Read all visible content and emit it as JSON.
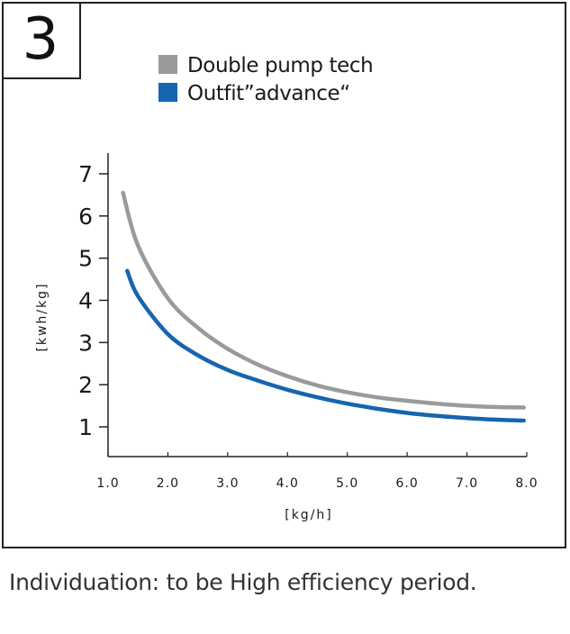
{
  "badge": "3",
  "caption": "Individuation:  to be High efficiency period.",
  "chart_data": {
    "type": "line",
    "title": "",
    "xlabel": "[kg/h]",
    "ylabel": "[kwh/kg]",
    "xlim": [
      1.0,
      8.0
    ],
    "ylim": [
      0.3,
      7.4
    ],
    "xticks": [
      "1.0",
      "2.0",
      "3.0",
      "4.0",
      "5.0",
      "6.0",
      "7.0",
      "8.0"
    ],
    "yticks": [
      "1",
      "2",
      "3",
      "4",
      "5",
      "6",
      "7"
    ],
    "grid": false,
    "legend_position": "top",
    "series": [
      {
        "name": "Double pump tech",
        "color": "#9a9a9a",
        "x": [
          1.25,
          1.5,
          2.0,
          2.5,
          3.0,
          3.5,
          4.0,
          4.5,
          5.0,
          5.5,
          6.0,
          6.5,
          7.0,
          7.5,
          7.95
        ],
        "y": [
          6.55,
          5.3,
          4.05,
          3.35,
          2.85,
          2.48,
          2.2,
          1.98,
          1.82,
          1.7,
          1.62,
          1.55,
          1.5,
          1.47,
          1.46
        ]
      },
      {
        "name": "Outfit”advance“",
        "color": "#1565b0",
        "x": [
          1.32,
          1.5,
          2.0,
          2.5,
          3.0,
          3.5,
          4.0,
          4.5,
          5.0,
          5.5,
          6.0,
          6.5,
          7.0,
          7.5,
          7.95
        ],
        "y": [
          4.7,
          4.1,
          3.2,
          2.7,
          2.35,
          2.1,
          1.88,
          1.7,
          1.55,
          1.43,
          1.33,
          1.26,
          1.21,
          1.17,
          1.15
        ]
      }
    ]
  }
}
